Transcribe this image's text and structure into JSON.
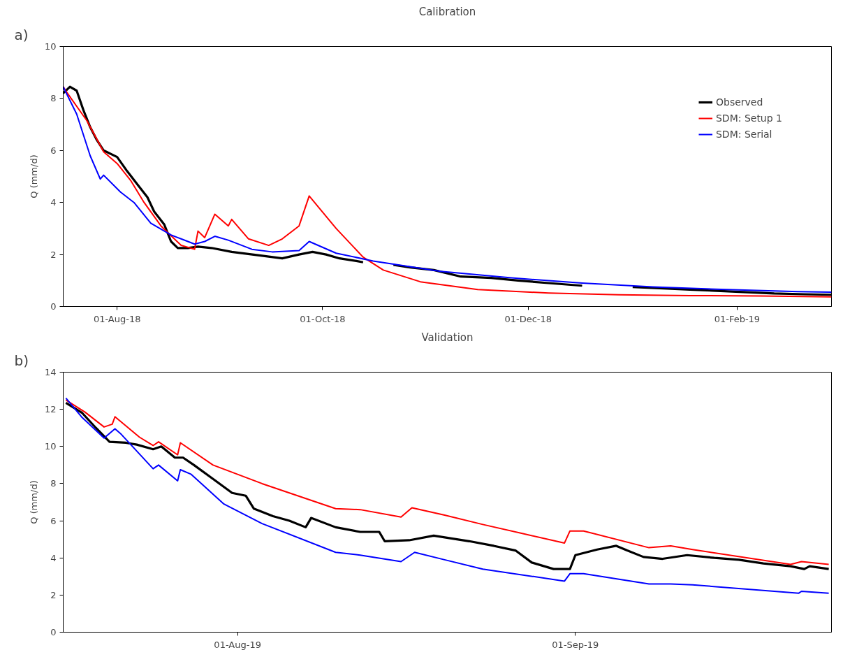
{
  "chart_data": [
    {
      "type": "line",
      "title": "Calibration",
      "ylabel": "Q (mm/d)",
      "annotations": [
        "a)"
      ],
      "xlim": [
        "2018-07-16",
        "2019-03-01"
      ],
      "ylim": [
        0,
        10
      ],
      "yticks": [
        0,
        2,
        4,
        6,
        8,
        10
      ],
      "xticks": [
        {
          "value": "2018-08-01",
          "label": "01-Aug-18"
        },
        {
          "value": "2018-10-01",
          "label": "01-Oct-18"
        },
        {
          "value": "2018-12-01",
          "label": "01-Dec-18"
        },
        {
          "value": "2019-02-01",
          "label": "01-Feb-19"
        }
      ],
      "grid": false,
      "legend": "top right",
      "line_style": "solid",
      "marker": "none",
      "series": [
        {
          "name": "Observed",
          "color": "#000000",
          "x": [
            "2018-07-16",
            "2018-07-18",
            "2018-07-20",
            "2018-07-22",
            "2018-07-24",
            "2018-07-26",
            "2018-07-28",
            "2018-08-01",
            "2018-08-04",
            "2018-08-07",
            "2018-08-10",
            "2018-08-12",
            "2018-08-15",
            "2018-08-17",
            "2018-08-19",
            "2018-08-22",
            "2018-08-25",
            "2018-08-29",
            "2018-09-04",
            "2018-09-13",
            "2018-09-19",
            "2018-09-24",
            "2018-09-28",
            "2018-10-02",
            "2018-10-06",
            "2018-10-11",
            "2018-10-13",
            "2018-10-18",
            "2018-10-22",
            "2018-10-27",
            "2018-11-03",
            "2018-11-11",
            "2018-11-20",
            "2018-11-28",
            "2018-12-07",
            "2018-12-17",
            "2018-12-25",
            "2019-01-01",
            "2019-01-09",
            "2019-01-18",
            "2019-01-26",
            "2019-02-04",
            "2019-02-12",
            "2019-02-21",
            "2019-03-01"
          ],
          "values": [
            8.2,
            8.45,
            8.3,
            7.55,
            6.9,
            6.4,
            6.0,
            5.75,
            5.2,
            4.7,
            4.2,
            3.65,
            3.15,
            2.5,
            2.25,
            2.25,
            2.3,
            2.25,
            2.1,
            1.95,
            1.85,
            2.0,
            2.1,
            2.0,
            1.85,
            1.75,
            1.7,
            null,
            1.6,
            1.5,
            1.4,
            1.15,
            1.1,
            1.0,
            0.9,
            0.8,
            null,
            0.75,
            0.7,
            0.65,
            0.6,
            0.55,
            0.5,
            0.47,
            0.45
          ]
        },
        {
          "name": "SDM: Setup 1",
          "color": "#ff0000",
          "x": [
            "2018-07-16",
            "2018-07-17",
            "2018-07-23",
            "2018-07-28",
            "2018-08-01",
            "2018-08-05",
            "2018-08-09",
            "2018-08-14",
            "2018-08-20",
            "2018-08-24",
            "2018-08-25",
            "2018-08-27",
            "2018-08-30",
            "2018-09-03",
            "2018-09-04",
            "2018-09-09",
            "2018-09-15",
            "2018-09-19",
            "2018-09-24",
            "2018-09-27",
            "2018-10-05",
            "2018-10-13",
            "2018-10-19",
            "2018-10-30",
            "2018-11-16",
            "2018-12-07",
            "2018-12-28",
            "2019-01-18",
            "2019-02-08",
            "2019-03-01"
          ],
          "values": [
            8.45,
            8.25,
            7.15,
            5.95,
            5.5,
            4.85,
            4.0,
            3.1,
            2.35,
            2.2,
            2.9,
            2.65,
            3.55,
            3.1,
            3.35,
            2.6,
            2.35,
            2.6,
            3.1,
            4.25,
            3.0,
            1.9,
            1.4,
            0.95,
            0.65,
            0.52,
            0.45,
            0.42,
            0.4,
            0.37
          ]
        },
        {
          "name": "SDM: Serial",
          "color": "#0000ff",
          "x": [
            "2018-07-16",
            "2018-07-20",
            "2018-07-24",
            "2018-07-27",
            "2018-07-28",
            "2018-08-02",
            "2018-08-06",
            "2018-08-11",
            "2018-08-17",
            "2018-08-20",
            "2018-08-24",
            "2018-08-27",
            "2018-08-30",
            "2018-09-03",
            "2018-09-10",
            "2018-09-16",
            "2018-09-24",
            "2018-09-27",
            "2018-10-05",
            "2018-10-16",
            "2018-11-05",
            "2018-11-26",
            "2018-12-17",
            "2019-01-07",
            "2019-01-29",
            "2019-02-19",
            "2019-03-01"
          ],
          "values": [
            8.45,
            7.4,
            5.8,
            4.9,
            5.05,
            4.4,
            4.0,
            3.2,
            2.75,
            2.6,
            2.4,
            2.5,
            2.7,
            2.55,
            2.2,
            2.1,
            2.15,
            2.5,
            2.05,
            1.75,
            1.35,
            1.1,
            0.9,
            0.75,
            0.65,
            0.57,
            0.55
          ]
        }
      ]
    },
    {
      "type": "line",
      "title": "Validation",
      "ylabel": "Q (mm/d)",
      "annotations": [
        "b)"
      ],
      "xlim": [
        "2019-07-16",
        "2019-09-24T12:00"
      ],
      "ylim": [
        0,
        14
      ],
      "yticks": [
        0,
        2,
        4,
        6,
        8,
        10,
        12,
        14
      ],
      "xticks": [
        {
          "value": "2019-08-01",
          "label": "01-Aug-19"
        },
        {
          "value": "2019-09-01",
          "label": "01-Sep-19"
        }
      ],
      "grid": false,
      "legend": false,
      "line_style": "solid",
      "marker": "none",
      "series": [
        {
          "color": "#000000",
          "x": [
            "2019-07-16T06:00",
            "2019-07-17T18:00",
            "2019-07-19T00:00",
            "2019-07-20T06:00",
            "2019-07-21T18:00",
            "2019-07-22T18:00",
            "2019-07-24T06:00",
            "2019-07-25T00:00",
            "2019-07-26T06:00",
            "2019-07-27T00:00",
            "2019-07-28T00:00",
            "2019-07-29T18:00",
            "2019-07-31T12:00",
            "2019-08-01T18:00",
            "2019-08-02T12:00",
            "2019-08-04T06:00",
            "2019-08-05T18:00",
            "2019-08-07T06:00",
            "2019-08-07T18:00",
            "2019-08-10T00:00",
            "2019-08-12T06:00",
            "2019-08-14T00:00",
            "2019-08-14T12:00",
            "2019-08-16T18:00",
            "2019-08-19T00:00",
            "2019-08-22T06:00",
            "2019-08-24T12:00",
            "2019-08-26T12:00",
            "2019-08-28T00:00",
            "2019-08-30T00:00",
            "2019-08-31T12:00",
            "2019-09-01T00:00",
            "2019-09-03T00:00",
            "2019-09-04T18:00",
            "2019-09-05T18:00",
            "2019-09-07T06:00",
            "2019-09-09T00:00",
            "2019-09-11T06:00",
            "2019-09-13T18:00",
            "2019-09-16T00:00",
            "2019-09-18T06:00",
            "2019-09-20T18:00",
            "2019-09-22T00:00",
            "2019-09-22T12:00",
            "2019-09-24T06:00"
          ],
          "values": [
            12.35,
            11.8,
            11.0,
            10.25,
            10.2,
            10.1,
            9.85,
            10.0,
            9.4,
            9.4,
            9.0,
            8.25,
            7.5,
            7.35,
            6.65,
            6.25,
            6.0,
            5.65,
            6.15,
            5.65,
            5.4,
            5.4,
            4.9,
            4.95,
            5.2,
            4.9,
            4.65,
            4.4,
            3.75,
            3.4,
            3.4,
            4.15,
            4.45,
            4.65,
            4.4,
            4.05,
            3.95,
            4.15,
            4.0,
            3.9,
            3.7,
            3.55,
            3.4,
            3.55,
            3.4
          ]
        },
        {
          "color": "#ff0000",
          "x": [
            "2019-07-16T06:00",
            "2019-07-18T00:00",
            "2019-07-19T18:00",
            "2019-07-20T12:00",
            "2019-07-20T18:00",
            "2019-07-23T00:00",
            "2019-07-24T06:00",
            "2019-07-24T18:00",
            "2019-07-26T12:00",
            "2019-07-26T18:00",
            "2019-07-29T18:00",
            "2019-08-03T06:00",
            "2019-08-10T00:00",
            "2019-08-12T06:00",
            "2019-08-16T00:00",
            "2019-08-17T00:00",
            "2019-08-20T00:00",
            "2019-08-23T12:00",
            "2019-08-31T00:00",
            "2019-08-31T12:00",
            "2019-09-01T18:00",
            "2019-09-07T18:00",
            "2019-09-09T18:00",
            "2019-09-11T18:00",
            "2019-09-20T18:00",
            "2019-09-21T18:00",
            "2019-09-24T06:00"
          ],
          "values": [
            12.5,
            11.85,
            11.05,
            11.2,
            11.6,
            10.5,
            10.05,
            10.25,
            9.55,
            10.2,
            9.0,
            8.0,
            6.65,
            6.6,
            6.2,
            6.7,
            6.3,
            5.8,
            4.8,
            5.45,
            5.45,
            4.55,
            4.65,
            4.45,
            3.65,
            3.8,
            3.65
          ]
        },
        {
          "color": "#0000ff",
          "x": [
            "2019-07-16T06:00",
            "2019-07-17T18:00",
            "2019-07-19T18:00",
            "2019-07-20T18:00",
            "2019-07-21T06:00",
            "2019-07-24T06:00",
            "2019-07-24T18:00",
            "2019-07-26T12:00",
            "2019-07-26T18:00",
            "2019-07-27T18:00",
            "2019-07-30T18:00",
            "2019-08-03T06:00",
            "2019-08-10T00:00",
            "2019-08-12T06:00",
            "2019-08-16T00:00",
            "2019-08-17T06:00",
            "2019-08-20T00:00",
            "2019-08-23T12:00",
            "2019-08-31T00:00",
            "2019-08-31T12:00",
            "2019-09-01T18:00",
            "2019-09-07T18:00",
            "2019-09-09T18:00",
            "2019-09-11T18:00",
            "2019-09-21T12:00",
            "2019-09-21T18:00",
            "2019-09-24T06:00"
          ],
          "values": [
            12.6,
            11.55,
            10.45,
            10.95,
            10.7,
            8.8,
            9.0,
            8.15,
            8.75,
            8.5,
            6.9,
            5.85,
            4.3,
            4.15,
            3.8,
            4.3,
            3.9,
            3.4,
            2.75,
            3.15,
            3.15,
            2.6,
            2.6,
            2.55,
            2.1,
            2.2,
            2.1
          ]
        }
      ]
    }
  ]
}
